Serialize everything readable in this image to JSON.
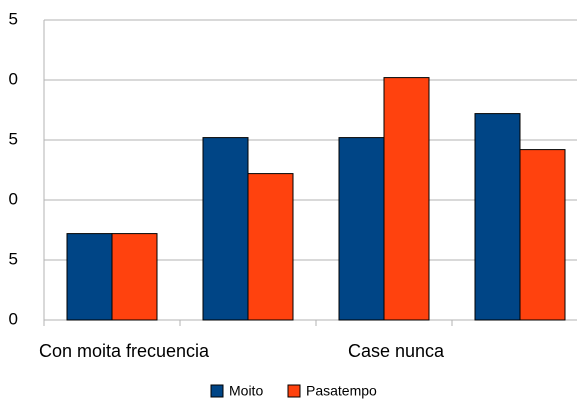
{
  "chart_data": {
    "type": "bar",
    "categories": [
      "Con moita frecuencia",
      null,
      "Case nunca",
      null
    ],
    "series": [
      {
        "name": "Moito",
        "color": "#004586",
        "values": [
          7.2,
          15.2,
          15.2,
          17.2
        ]
      },
      {
        "name": "Pasatempo",
        "color": "#ff420e",
        "values": [
          7.2,
          12.2,
          20.2,
          14.2
        ]
      }
    ],
    "ylim": [
      0,
      25
    ],
    "yticks": [
      0,
      5,
      {
        "value": 10,
        "label": "0"
      },
      {
        "value": 15,
        "label": "5"
      },
      {
        "value": 20,
        "label": "0"
      },
      {
        "value": 25,
        "label": "5"
      }
    ],
    "grid": true,
    "legend": "bottom"
  }
}
